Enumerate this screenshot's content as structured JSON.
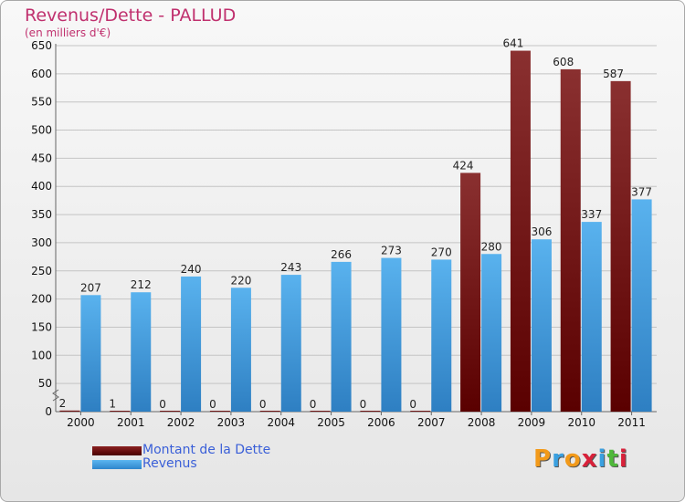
{
  "chart_data": {
    "type": "bar",
    "title": "Revenus/Dette - PALLUD",
    "subtitle": "(en milliers d'€)",
    "xlabel": "",
    "ylabel": "",
    "ylim": [
      0,
      650
    ],
    "yticks": [
      0,
      50,
      100,
      150,
      200,
      250,
      300,
      350,
      400,
      450,
      500,
      550,
      600,
      650
    ],
    "grid": true,
    "legend_position": "bottom-left",
    "categories": [
      "2000",
      "2001",
      "2002",
      "2003",
      "2004",
      "2005",
      "2006",
      "2007",
      "2008",
      "2009",
      "2010",
      "2011"
    ],
    "series": [
      {
        "name": "Montant de la Dette",
        "color": "#7a1e1e",
        "values": [
          2,
          1,
          0,
          0,
          0,
          0,
          0,
          0,
          424,
          641,
          608,
          587
        ]
      },
      {
        "name": "Revenus",
        "color": "#4aa3e6",
        "values": [
          207,
          212,
          240,
          220,
          243,
          266,
          273,
          270,
          280,
          306,
          337,
          377
        ]
      }
    ]
  },
  "legend": {
    "items": [
      {
        "label": "Montant de la Dette",
        "color": "#6b0d0d"
      },
      {
        "label": "Revenus",
        "color": "#4aa3e6"
      }
    ]
  },
  "logo": {
    "text": "Proxiti"
  }
}
